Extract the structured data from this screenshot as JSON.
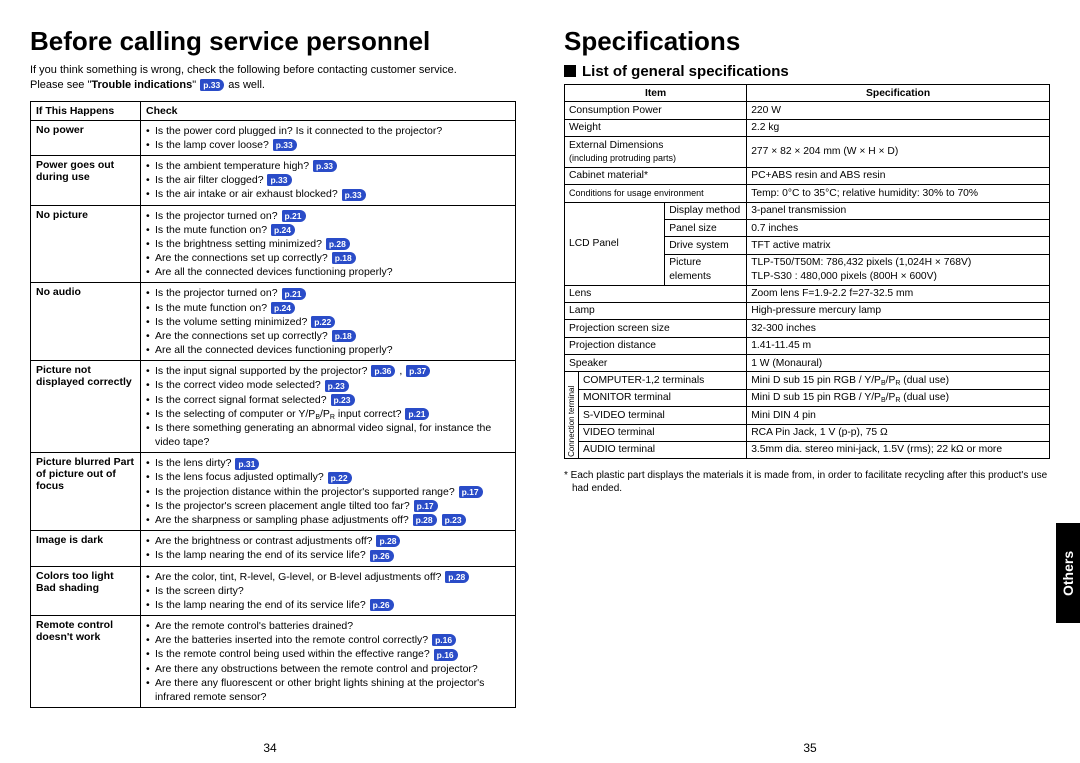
{
  "left": {
    "title": "Before calling service personnel",
    "intro1": "If you think something is wrong, check the following before contacting customer service.",
    "intro2a": "Please see \"",
    "intro2b": "Trouble indications",
    "intro2c": "\" ",
    "intro2d": " as well.",
    "intro_ref": "p.33",
    "th1": "If  This Happens",
    "th2": "Check",
    "rows": [
      {
        "happens": "No power",
        "checks": [
          {
            "t": "Is the power cord plugged in? Is it connected to the projector?"
          },
          {
            "t": "Is the lamp cover loose? ",
            "r": [
              "p.33"
            ]
          }
        ]
      },
      {
        "happens": "Power goes out during use",
        "checks": [
          {
            "t": "Is the ambient temperature high? ",
            "r": [
              "p.33"
            ]
          },
          {
            "t": "Is the air filter clogged? ",
            "r": [
              "p.33"
            ]
          },
          {
            "t": "Is the air intake or air exhaust blocked? ",
            "r": [
              "p.33"
            ]
          }
        ]
      },
      {
        "happens": "No picture",
        "checks": [
          {
            "t": "Is the projector turned on? ",
            "r": [
              "p.21"
            ]
          },
          {
            "t": "Is the mute function on? ",
            "r": [
              "p.24"
            ]
          },
          {
            "t": "Is the brightness setting minimized? ",
            "r": [
              "p.28"
            ]
          },
          {
            "t": "Are the connections set up correctly? ",
            "r": [
              "p.18"
            ]
          },
          {
            "t": "Are all the connected devices functioning properly?"
          }
        ]
      },
      {
        "happens": "No audio",
        "checks": [
          {
            "t": "Is the projector turned on? ",
            "r": [
              "p.21"
            ]
          },
          {
            "t": "Is the mute function on? ",
            "r": [
              "p.24"
            ]
          },
          {
            "t": "Is the volume setting minimized? ",
            "r": [
              "p.22"
            ]
          },
          {
            "t": "Are the connections set up correctly? ",
            "r": [
              "p.18"
            ]
          },
          {
            "t": "Are all the connected devices functioning properly?"
          }
        ]
      },
      {
        "happens": "Picture not displayed correctly",
        "checks": [
          {
            "t": "Is the input signal supported by the projector? ",
            "r": [
              "p.36",
              "p.37"
            ],
            "sep": " , "
          },
          {
            "t": "Is the correct video mode selected? ",
            "r": [
              "p.23"
            ]
          },
          {
            "t": "Is the correct signal format selected? ",
            "r": [
              "p.23"
            ]
          },
          {
            "t": "Is the selecting of computer or Y/PB/PR input correct? ",
            "r": [
              "p.21"
            ],
            "sub": true
          },
          {
            "t": "Is there something generating an abnormal video signal, for instance the video tape?"
          }
        ]
      },
      {
        "happens": "Picture blurred Part of picture out of focus",
        "checks": [
          {
            "t": "Is the lens dirty? ",
            "r": [
              "p.31"
            ]
          },
          {
            "t": "Is the lens focus adjusted optimally? ",
            "r": [
              "p.22"
            ]
          },
          {
            "t": "Is the projection distance within the projector's supported range? ",
            "r": [
              "p.17"
            ]
          },
          {
            "t": "Is the projector's screen placement angle tilted too far? ",
            "r": [
              "p.17"
            ]
          },
          {
            "t": "Are the sharpness or sampling phase adjustments off? ",
            "r": [
              "p.28",
              "p.23"
            ]
          }
        ]
      },
      {
        "happens": "Image is dark",
        "checks": [
          {
            "t": "Are the brightness or contrast adjustments off? ",
            "r": [
              "p.28"
            ]
          },
          {
            "t": "Is the lamp nearing the end of its service life? ",
            "r": [
              "p.26"
            ]
          }
        ]
      },
      {
        "happens": "Colors too light Bad shading",
        "checks": [
          {
            "t": "Are the color, tint, R-level, G-level, or B-level adjustments off? ",
            "r": [
              "p.28"
            ]
          },
          {
            "t": "Is the screen dirty?"
          },
          {
            "t": "Is the lamp nearing the end of its service life? ",
            "r": [
              "p.26"
            ]
          }
        ]
      },
      {
        "happens": "Remote control doesn't work",
        "checks": [
          {
            "t": "Are the remote control's batteries drained?"
          },
          {
            "t": "Are the batteries inserted into the remote control correctly? ",
            "r": [
              "p.16"
            ]
          },
          {
            "t": "Is the remote control being used within the effective range? ",
            "r": [
              "p.16"
            ]
          },
          {
            "t": "Are there any obstructions between the remote control and projector?"
          },
          {
            "t": "Are there any fluorescent or other bright lights shining at the projector's infrared remote sensor?"
          }
        ]
      }
    ],
    "pagenum": "34"
  },
  "right": {
    "title": "Specifications",
    "subhead": "List of general specifications",
    "th1": "Item",
    "th2": "Specification",
    "rows": [
      {
        "i": [
          "Consumption Power"
        ],
        "s": "220 W"
      },
      {
        "i": [
          "Weight"
        ],
        "s": "2.2 kg"
      },
      {
        "i": [
          "External Dimensions",
          "(including protruding parts)"
        ],
        "s": "277 × 82 × 204 mm (W × H × D)"
      },
      {
        "i": [
          "Cabinet material*"
        ],
        "s": "PC+ABS resin and ABS resin"
      },
      {
        "i": [
          "Conditions for usage environment"
        ],
        "s": "Temp: 0°C to 35°C; relative humidity: 30% to 70%"
      },
      {
        "lcd": true,
        "sub": "Display method",
        "s": "3-panel transmission"
      },
      {
        "lcd": true,
        "sub": "Panel size",
        "s": "0.7 inches"
      },
      {
        "lcd": true,
        "sub": "Drive system",
        "s": "TFT active matrix"
      },
      {
        "lcd": true,
        "sub": "Picture elements",
        "s": "TLP-T50/T50M: 786,432 pixels (1,024H × 768V)\nTLP-S30    : 480,000 pixels (800H × 600V)"
      },
      {
        "i": [
          "Lens"
        ],
        "s": "Zoom lens F=1.9-2.2    f=27-32.5 mm"
      },
      {
        "i": [
          "Lamp"
        ],
        "s": "High-pressure mercury lamp"
      },
      {
        "i": [
          "Projection screen size"
        ],
        "s": "32-300 inches"
      },
      {
        "i": [
          "Projection distance"
        ],
        "s": "1.41-11.45 m"
      },
      {
        "i": [
          "Speaker"
        ],
        "s": "1 W (Monaural)"
      },
      {
        "ct": true,
        "sub": "COMPUTER-1,2 terminals",
        "s": "Mini D sub 15 pin    RGB / Y/PB/PR (dual use)"
      },
      {
        "ct": true,
        "sub": "MONITOR terminal",
        "s": "Mini D sub 15 pin    RGB / Y/PB/PR (dual use)"
      },
      {
        "ct": true,
        "sub": "S-VIDEO terminal",
        "s": "Mini DIN 4 pin"
      },
      {
        "ct": true,
        "sub": "VIDEO terminal",
        "s": "RCA Pin Jack, 1 V (p-p), 75 Ω"
      },
      {
        "ct": true,
        "sub": "AUDIO terminal",
        "s": "3.5mm dia. stereo mini-jack, 1.5V (rms); 22 kΩ or more"
      }
    ],
    "lcd_label": "LCD Panel",
    "ct_label": "Connection terminal",
    "footnote": "* Each plastic part displays the materials it is made from, in order to facilitate recycling after this product's use had ended.",
    "pagenum": "35",
    "tab": "Others"
  }
}
